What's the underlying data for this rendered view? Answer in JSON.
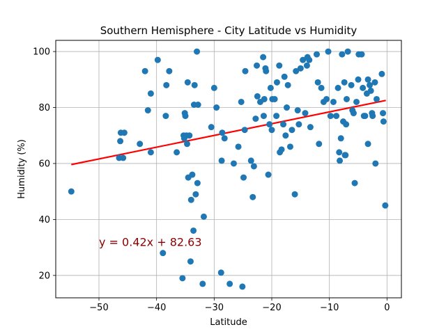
{
  "chart_data": {
    "type": "scatter",
    "title": "Southern Hemisphere - City Latitude vs Humidity",
    "xlabel": "Latitude",
    "ylabel": "Humidity (%)",
    "xlim": [
      -57.5,
      2.5
    ],
    "ylim": [
      12,
      104
    ],
    "xticks": [
      -50,
      -40,
      -30,
      -20,
      -10,
      0
    ],
    "yticks": [
      20,
      40,
      60,
      80,
      100
    ],
    "xtick_labels": [
      "−50",
      "−40",
      "−30",
      "−20",
      "−10",
      "0"
    ],
    "ytick_labels": [
      "20",
      "40",
      "60",
      "80",
      "100"
    ],
    "grid": true,
    "point_color": "#1f77b4",
    "regression": {
      "slope": 0.42,
      "intercept": 82.63,
      "x_range": [
        -54.8,
        -0.2
      ],
      "color": "#ff0000",
      "equation_label": "y = 0.42x + 82.63",
      "label_color": "#8b0000",
      "label_x": -50,
      "label_y": 30
    },
    "points": [
      [
        -54.8,
        50
      ],
      [
        -46.2,
        71
      ],
      [
        -45.6,
        71
      ],
      [
        -46.3,
        68
      ],
      [
        -46.5,
        62
      ],
      [
        -45.8,
        62
      ],
      [
        -42.9,
        67
      ],
      [
        -42.0,
        93
      ],
      [
        -41.5,
        79
      ],
      [
        -41.0,
        85
      ],
      [
        -41.0,
        64
      ],
      [
        -39.8,
        97
      ],
      [
        -38.9,
        28
      ],
      [
        -38.3,
        88
      ],
      [
        -38.4,
        77
      ],
      [
        -37.8,
        93
      ],
      [
        -36.5,
        64
      ],
      [
        -35.5,
        19
      ],
      [
        -35.3,
        70
      ],
      [
        -35.2,
        69
      ],
      [
        -35.1,
        78
      ],
      [
        -35.0,
        77
      ],
      [
        -34.8,
        70
      ],
      [
        -34.7,
        67
      ],
      [
        -34.6,
        89
      ],
      [
        -34.5,
        55
      ],
      [
        -34.3,
        70
      ],
      [
        -34.1,
        25
      ],
      [
        -34.0,
        47
      ],
      [
        -33.8,
        56
      ],
      [
        -33.6,
        36
      ],
      [
        -33.5,
        81
      ],
      [
        -33.4,
        88
      ],
      [
        -33.2,
        49
      ],
      [
        -33.0,
        100
      ],
      [
        -32.9,
        53
      ],
      [
        -32.8,
        81
      ],
      [
        -32.0,
        17
      ],
      [
        -31.8,
        41
      ],
      [
        -30.5,
        73
      ],
      [
        -30.0,
        87
      ],
      [
        -29.6,
        80
      ],
      [
        -28.8,
        21
      ],
      [
        -28.7,
        61
      ],
      [
        -28.6,
        71
      ],
      [
        -28.2,
        69
      ],
      [
        -27.3,
        17
      ],
      [
        -26.6,
        60
      ],
      [
        -25.8,
        66
      ],
      [
        -25.3,
        82
      ],
      [
        -25.1,
        16
      ],
      [
        -24.9,
        55
      ],
      [
        -24.7,
        72
      ],
      [
        -24.6,
        93
      ],
      [
        -23.6,
        61
      ],
      [
        -23.3,
        48
      ],
      [
        -23.1,
        59
      ],
      [
        -22.8,
        76
      ],
      [
        -22.6,
        95
      ],
      [
        -22.5,
        84
      ],
      [
        -22.0,
        82
      ],
      [
        -21.5,
        98
      ],
      [
        -21.4,
        77
      ],
      [
        -21.3,
        83
      ],
      [
        -21.1,
        94
      ],
      [
        -21.0,
        93
      ],
      [
        -20.6,
        56
      ],
      [
        -20.4,
        74
      ],
      [
        -20.2,
        87
      ],
      [
        -20.0,
        72
      ],
      [
        -19.9,
        83
      ],
      [
        -19.5,
        83
      ],
      [
        -19.2,
        77
      ],
      [
        -19.1,
        89
      ],
      [
        -18.7,
        95
      ],
      [
        -18.6,
        64
      ],
      [
        -18.3,
        65
      ],
      [
        -18.0,
        74
      ],
      [
        -17.8,
        91
      ],
      [
        -17.6,
        70
      ],
      [
        -17.4,
        80
      ],
      [
        -17.2,
        88
      ],
      [
        -16.8,
        66
      ],
      [
        -16.5,
        72
      ],
      [
        -16.0,
        49
      ],
      [
        -15.8,
        93
      ],
      [
        -15.5,
        79
      ],
      [
        -15.3,
        74
      ],
      [
        -15.0,
        94
      ],
      [
        -14.6,
        97
      ],
      [
        -14.2,
        78
      ],
      [
        -13.9,
        95
      ],
      [
        -13.8,
        98
      ],
      [
        -13.5,
        97
      ],
      [
        -13.3,
        73
      ],
      [
        -12.2,
        99
      ],
      [
        -12.0,
        89
      ],
      [
        -11.8,
        67
      ],
      [
        -11.4,
        87
      ],
      [
        -11.0,
        82
      ],
      [
        -10.5,
        83
      ],
      [
        -10.2,
        100
      ],
      [
        -9.8,
        77
      ],
      [
        -9.3,
        82
      ],
      [
        -8.8,
        77
      ],
      [
        -8.5,
        87
      ],
      [
        -8.3,
        64
      ],
      [
        -8.2,
        61
      ],
      [
        -8.0,
        69
      ],
      [
        -7.8,
        99
      ],
      [
        -7.6,
        75
      ],
      [
        -7.4,
        89
      ],
      [
        -7.3,
        63
      ],
      [
        -7.2,
        63
      ],
      [
        -7.1,
        74
      ],
      [
        -7.0,
        83
      ],
      [
        -6.8,
        100
      ],
      [
        -6.2,
        88
      ],
      [
        -6.0,
        79
      ],
      [
        -5.8,
        78
      ],
      [
        -5.6,
        53
      ],
      [
        -5.3,
        82
      ],
      [
        -5.0,
        90
      ],
      [
        -4.9,
        99
      ],
      [
        -4.4,
        99
      ],
      [
        -4.2,
        87
      ],
      [
        -4.0,
        77
      ],
      [
        -3.8,
        77
      ],
      [
        -3.5,
        85
      ],
      [
        -3.3,
        90
      ],
      [
        -3.3,
        67
      ],
      [
        -3.0,
        88
      ],
      [
        -2.8,
        86
      ],
      [
        -2.6,
        78
      ],
      [
        -2.5,
        77
      ],
      [
        -2.1,
        89
      ],
      [
        -2.0,
        60
      ],
      [
        -1.8,
        83
      ],
      [
        -0.9,
        92
      ],
      [
        -0.7,
        78
      ],
      [
        -0.6,
        75
      ],
      [
        -0.3,
        45
      ]
    ]
  }
}
